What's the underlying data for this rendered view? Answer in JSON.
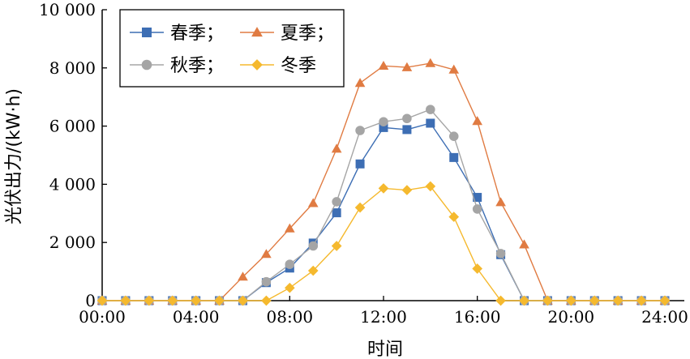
{
  "chart_data": {
    "type": "line",
    "xlabel": "时间",
    "ylabel": "光伏出力/(kW·h)",
    "x": [
      0,
      1,
      2,
      3,
      4,
      5,
      6,
      7,
      8,
      9,
      10,
      11,
      12,
      13,
      14,
      15,
      16,
      17,
      18,
      19,
      20,
      21,
      22,
      23,
      24
    ],
    "xlim": [
      0,
      24
    ],
    "ylim": [
      0,
      10000
    ],
    "x_ticks": [
      0,
      4,
      8,
      12,
      16,
      20,
      24
    ],
    "x_tick_labels": [
      "00:00",
      "04:00",
      "08:00",
      "12:00",
      "16:00",
      "20:00",
      "24:00"
    ],
    "y_ticks": [
      0,
      2000,
      4000,
      6000,
      8000,
      10000
    ],
    "y_tick_labels": [
      "0",
      "2 000",
      "4 000",
      "6 000",
      "8 000",
      "10 000"
    ],
    "grid": false,
    "legend_position": "top-left",
    "series": [
      {
        "name": "春季；",
        "legend_label": "春季；",
        "color": "#3d6eb4",
        "marker": "square",
        "values": [
          0,
          0,
          0,
          0,
          0,
          0,
          0,
          620,
          1120,
          1980,
          3020,
          4700,
          5950,
          5880,
          6100,
          4920,
          3550,
          1580,
          0,
          0,
          0,
          0,
          0,
          0,
          0
        ]
      },
      {
        "name": "夏季；",
        "legend_label": "夏季；",
        "color": "#e07b42",
        "marker": "triangle",
        "values": [
          0,
          0,
          0,
          0,
          0,
          0,
          820,
          1600,
          2480,
          3350,
          5220,
          7480,
          8070,
          8020,
          8160,
          7940,
          6170,
          3380,
          1930,
          0,
          0,
          0,
          0,
          0,
          0
        ]
      },
      {
        "name": "秋季；",
        "legend_label": "秋季；",
        "color": "#a5a5a5",
        "marker": "circle",
        "values": [
          0,
          0,
          0,
          0,
          0,
          0,
          0,
          650,
          1250,
          1880,
          3400,
          5850,
          6150,
          6260,
          6570,
          5650,
          3150,
          1620,
          0,
          0,
          0,
          0,
          0,
          0,
          0
        ]
      },
      {
        "name": "冬季",
        "legend_label": "冬季",
        "color": "#f5b92e",
        "marker": "diamond",
        "values": [
          0,
          0,
          0,
          0,
          0,
          0,
          0,
          0,
          440,
          1030,
          1880,
          3200,
          3860,
          3800,
          3930,
          2880,
          1100,
          0,
          0,
          0,
          0,
          0,
          0,
          0,
          0
        ]
      }
    ]
  }
}
